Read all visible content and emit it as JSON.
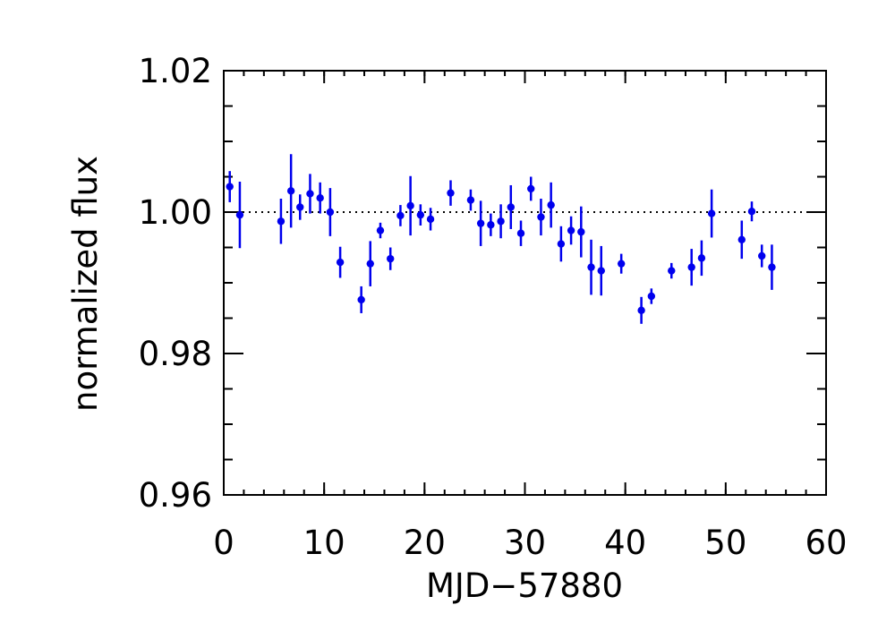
{
  "chart_data": {
    "type": "scatter",
    "xlabel": "MJD−57880",
    "ylabel": "normalized flux",
    "xlim": [
      0,
      60
    ],
    "ylim": [
      0.96,
      1.02
    ],
    "x_major_ticks": [
      0,
      10,
      20,
      30,
      40,
      50,
      60
    ],
    "x_tick_labels": [
      "0",
      "10",
      "20",
      "30",
      "40",
      "50",
      "60"
    ],
    "y_major_ticks": [
      0.96,
      0.98,
      1.0,
      1.02
    ],
    "y_tick_labels": [
      "0.96",
      "0.98",
      "1.00",
      "1.02"
    ],
    "reference_line": {
      "y": 1.0,
      "style": "dotted"
    },
    "grid": false,
    "legend": "none",
    "marker_color": "#0000ee",
    "series": [
      {
        "x": [
          0.6,
          1.6,
          5.7,
          6.7,
          7.6,
          8.6,
          9.6,
          10.6,
          11.6,
          13.7,
          14.6,
          15.6,
          16.6,
          17.6,
          18.6,
          19.6,
          20.6,
          22.6,
          24.6,
          25.6,
          26.6,
          27.6,
          28.6,
          29.6,
          30.6,
          31.6,
          32.6,
          33.6,
          34.6,
          35.6,
          36.6,
          37.6,
          39.6,
          41.6,
          42.6,
          44.6,
          46.6,
          47.6,
          48.6,
          51.6,
          52.6,
          53.6,
          54.6
        ],
        "y": [
          1.0036,
          0.9996,
          0.9987,
          1.003,
          1.0007,
          1.0026,
          1.002,
          1.0,
          0.9929,
          0.9876,
          0.9927,
          0.9974,
          0.9934,
          0.9995,
          1.0009,
          0.9996,
          0.999,
          1.0027,
          1.0017,
          0.9984,
          0.9982,
          0.9987,
          1.0007,
          0.997,
          1.0033,
          0.9993,
          1.001,
          0.9955,
          0.9974,
          0.9972,
          0.9922,
          0.9917,
          0.9927,
          0.9861,
          0.9881,
          0.9917,
          0.9922,
          0.9935,
          0.9998,
          0.9961,
          1.0001,
          0.9938,
          0.9922
        ],
        "yerr": [
          0.0022,
          0.0047,
          0.0032,
          0.0052,
          0.0018,
          0.0028,
          0.0022,
          0.0034,
          0.0022,
          0.0019,
          0.0032,
          0.0011,
          0.0016,
          0.0015,
          0.0042,
          0.0015,
          0.0016,
          0.0018,
          0.0015,
          0.0032,
          0.0016,
          0.0024,
          0.0031,
          0.0018,
          0.0017,
          0.0026,
          0.0032,
          0.0025,
          0.002,
          0.0036,
          0.0039,
          0.0035,
          0.0014,
          0.0019,
          0.0011,
          0.0011,
          0.0026,
          0.0025,
          0.0034,
          0.0027,
          0.0014,
          0.0016,
          0.0032
        ]
      }
    ]
  }
}
